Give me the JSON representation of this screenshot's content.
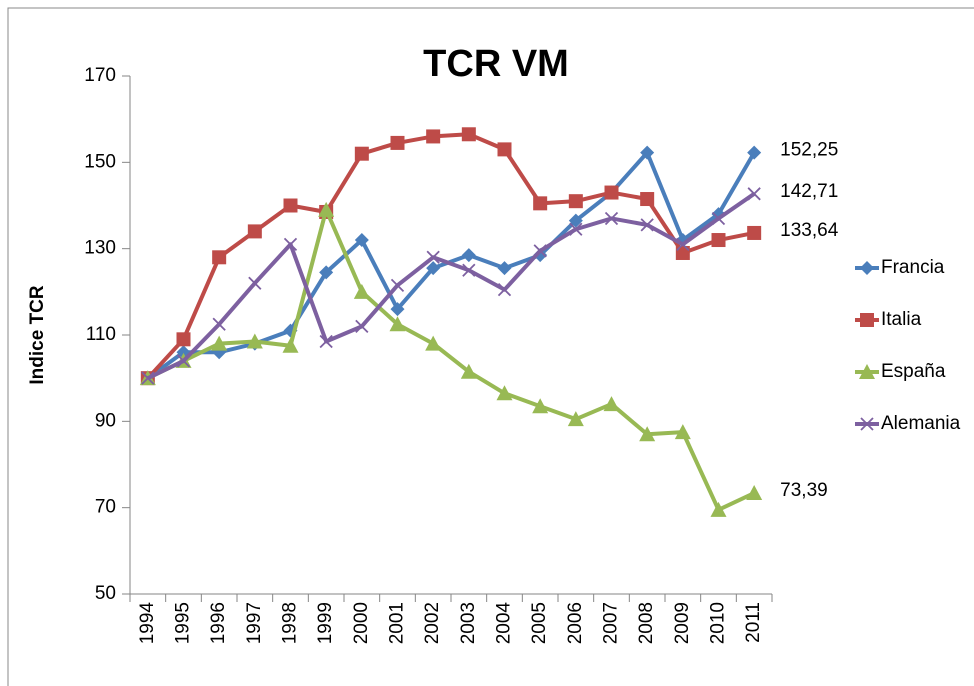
{
  "chart_data": {
    "type": "line",
    "title": "TCR VM",
    "y_label": "Indice TCR",
    "categories": [
      "1994",
      "1995",
      "1996",
      "1997",
      "1998",
      "1999",
      "2000",
      "2001",
      "2002",
      "2003",
      "2004",
      "2005",
      "2006",
      "2007",
      "2008",
      "2009",
      "2010",
      "2011"
    ],
    "ylim": [
      50,
      170
    ],
    "yticks": [
      50,
      70,
      90,
      110,
      130,
      150,
      170
    ],
    "legend": "right",
    "series": [
      {
        "name": "Francia",
        "color": "#4a7ebb",
        "marker": "diamond",
        "values": [
          100,
          106,
          106,
          108,
          111,
          124.5,
          132,
          116,
          125.5,
          128.5,
          125.5,
          128.5,
          136.5,
          143,
          152.25,
          132,
          138,
          152.25
        ],
        "value_labels": [
          null,
          null,
          null,
          null,
          null,
          null,
          null,
          null,
          null,
          null,
          null,
          null,
          null,
          null,
          null,
          null,
          null,
          "152,25"
        ]
      },
      {
        "name": "Italia",
        "color": "#be4b48",
        "marker": "square",
        "values": [
          100,
          109,
          128,
          134,
          140,
          138.5,
          152,
          154.5,
          156,
          156.5,
          153,
          140.5,
          141,
          143,
          141.5,
          129,
          132,
          133.64
        ],
        "value_labels": [
          null,
          null,
          null,
          null,
          null,
          null,
          null,
          null,
          null,
          null,
          null,
          null,
          null,
          null,
          null,
          null,
          null,
          "133,64"
        ]
      },
      {
        "name": "España",
        "color": "#98b954",
        "marker": "triangle",
        "values": [
          100,
          104,
          108,
          108.5,
          107.5,
          139,
          120,
          112.5,
          108,
          101.5,
          96.5,
          93.5,
          90.5,
          94,
          87,
          87.5,
          69.5,
          73.39
        ],
        "value_labels": [
          null,
          null,
          null,
          null,
          null,
          null,
          null,
          null,
          null,
          null,
          null,
          null,
          null,
          null,
          null,
          null,
          null,
          "73,39"
        ]
      },
      {
        "name": "Alemania",
        "color": "#7d60a0",
        "marker": "x",
        "values": [
          100,
          104,
          112.5,
          122,
          131,
          108.5,
          112,
          121.5,
          128,
          125,
          120.5,
          129.5,
          134.5,
          137,
          135.5,
          131,
          137,
          142.71
        ],
        "value_labels": [
          null,
          null,
          null,
          null,
          null,
          null,
          null,
          null,
          null,
          null,
          null,
          null,
          null,
          null,
          null,
          null,
          null,
          "142,71"
        ]
      }
    ]
  }
}
